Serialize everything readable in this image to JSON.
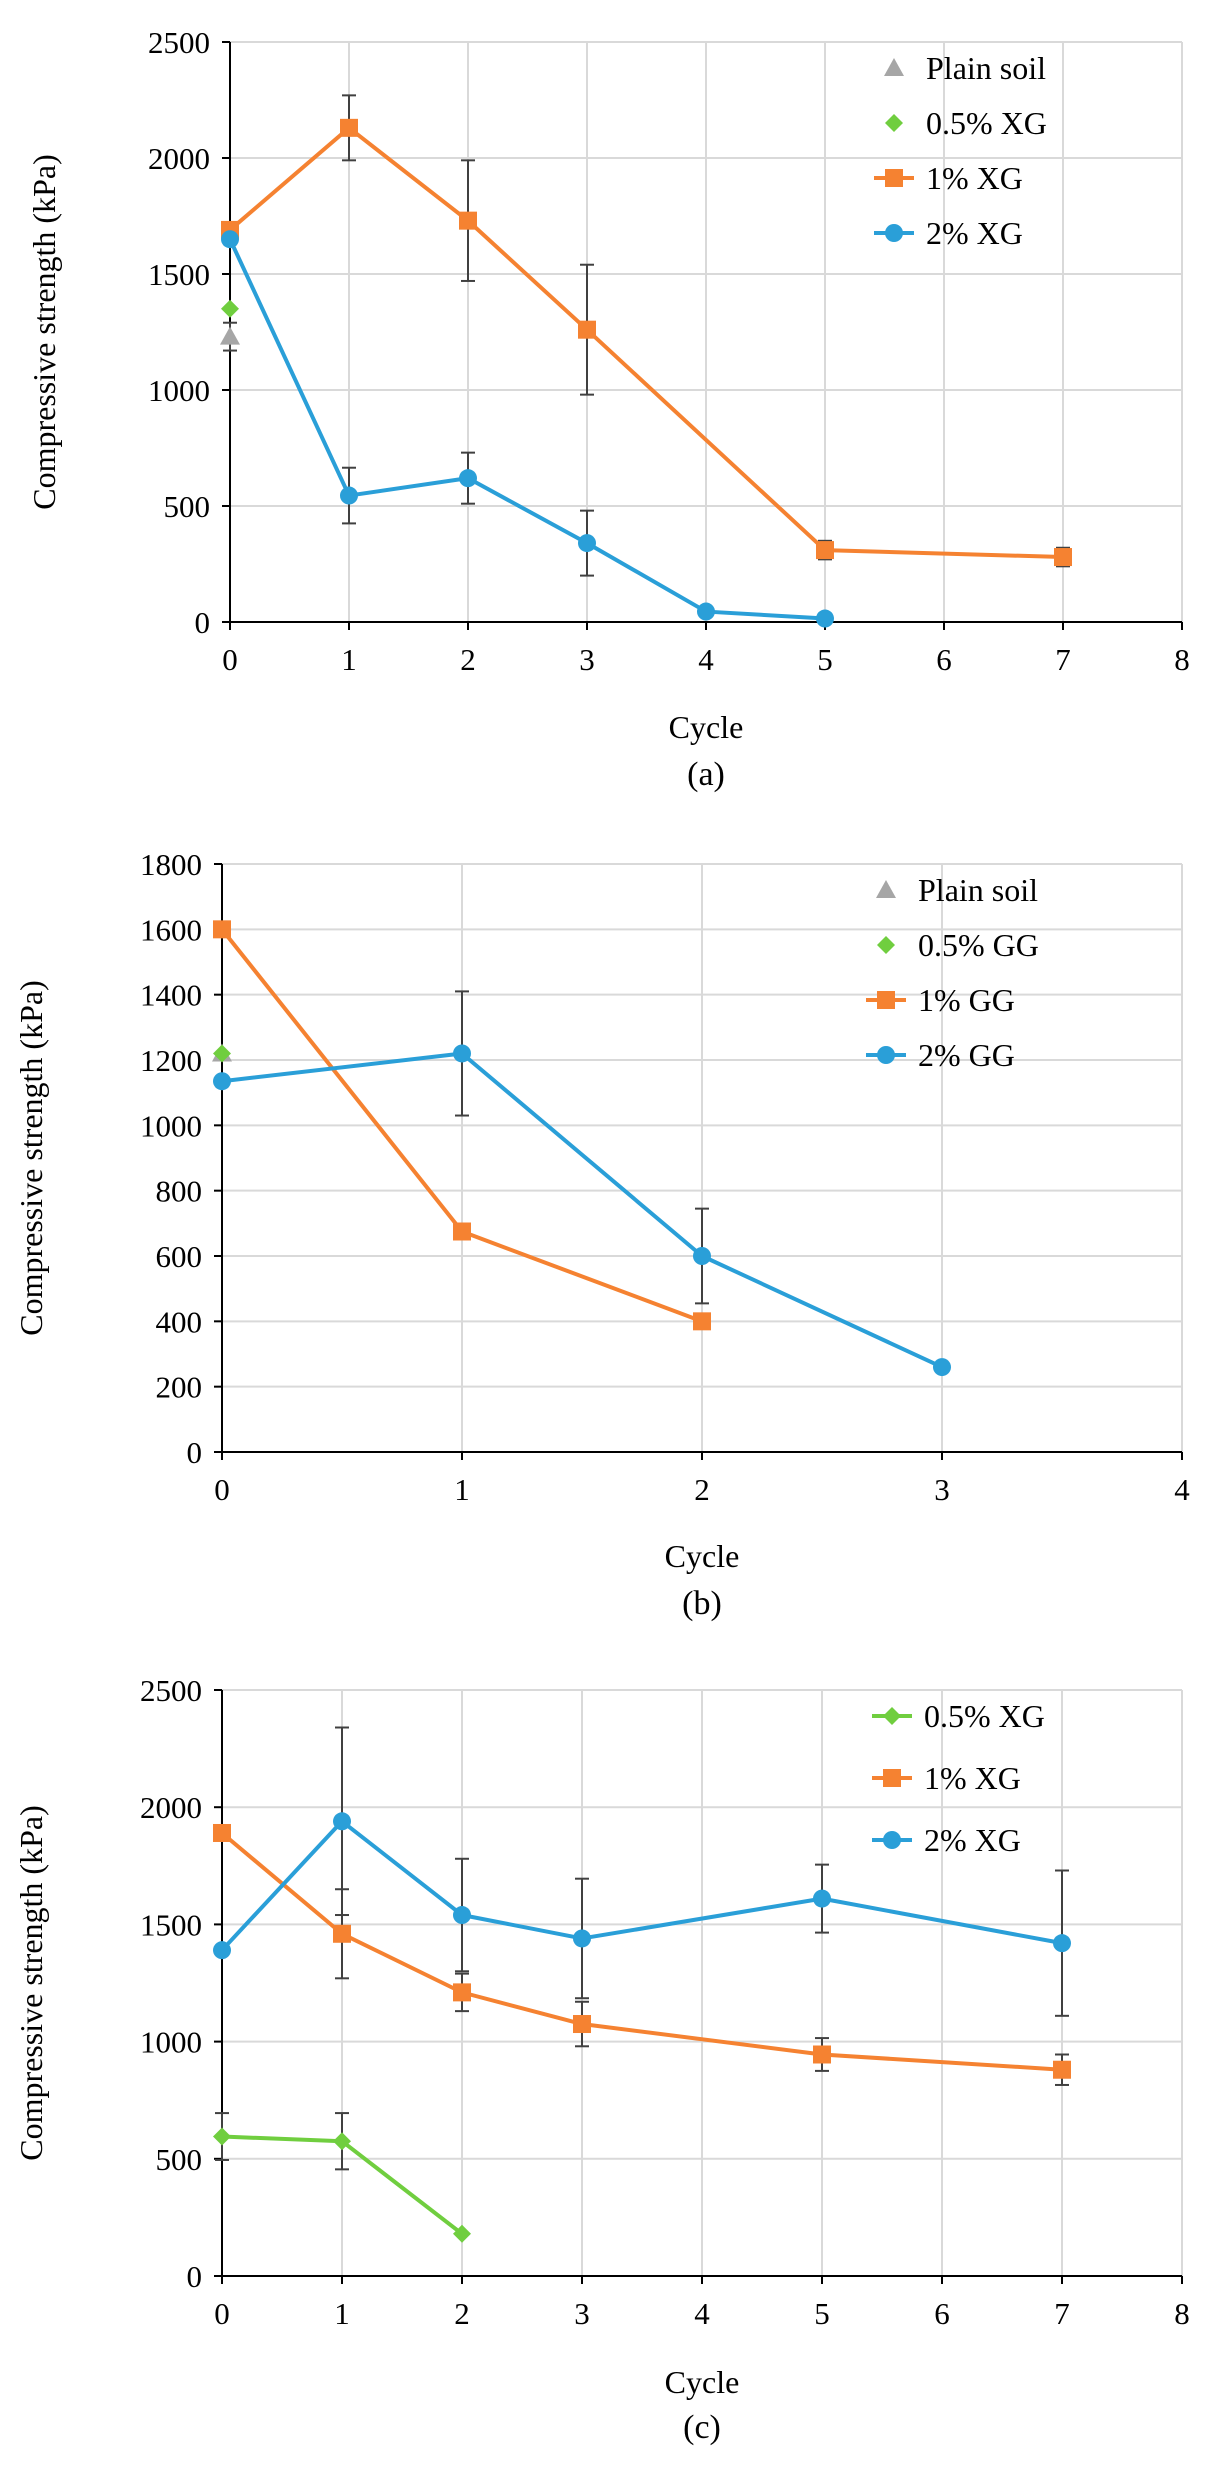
{
  "colors": {
    "plain": "#a6a6a6",
    "xg05": "#70ce3f",
    "xg1": "#f58231",
    "xg2": "#2a9fd8",
    "grid": "#d9d9d9",
    "axis": "#000000"
  },
  "chart_data": [
    {
      "id": "a",
      "type": "line",
      "caption": "(a)",
      "xlabel": "Cycle",
      "ylabel": "Compressive strength (kPa)",
      "xlim": [
        0,
        8
      ],
      "ylim": [
        0,
        2500
      ],
      "xticks": [
        0,
        1,
        2,
        3,
        4,
        5,
        6,
        7,
        8
      ],
      "yticks": [
        0,
        500,
        1000,
        1500,
        2000,
        2500
      ],
      "grid": true,
      "legend_position": "top-right",
      "series": [
        {
          "name": "Plain soil",
          "color": "#a6a6a6",
          "marker": "triangle",
          "line": false,
          "points": [
            {
              "x": 0,
              "y": 1230,
              "err": 60
            }
          ]
        },
        {
          "name": "0.5% XG",
          "color": "#70ce3f",
          "marker": "diamond",
          "line": false,
          "points": [
            {
              "x": 0,
              "y": 1350,
              "err": 0
            }
          ]
        },
        {
          "name": "1% XG",
          "color": "#f58231",
          "marker": "square",
          "line": true,
          "points": [
            {
              "x": 0,
              "y": 1690,
              "err": 0
            },
            {
              "x": 1,
              "y": 2130,
              "err": 140
            },
            {
              "x": 2,
              "y": 1730,
              "err": 260
            },
            {
              "x": 3,
              "y": 1260,
              "err": 280
            },
            {
              "x": 5,
              "y": 310,
              "err": 40
            },
            {
              "x": 7,
              "y": 280,
              "err": 40
            }
          ]
        },
        {
          "name": "2% XG",
          "color": "#2a9fd8",
          "marker": "circle",
          "line": true,
          "points": [
            {
              "x": 0,
              "y": 1650,
              "err": 0
            },
            {
              "x": 1,
              "y": 545,
              "err": 120
            },
            {
              "x": 2,
              "y": 620,
              "err": 110
            },
            {
              "x": 3,
              "y": 340,
              "err": 140
            },
            {
              "x": 4,
              "y": 45,
              "err": 0
            },
            {
              "x": 5,
              "y": 15,
              "err": 0
            }
          ]
        }
      ]
    },
    {
      "id": "b",
      "type": "line",
      "caption": "(b)",
      "xlabel": "Cycle",
      "ylabel": "Compressive strength (kPa)",
      "xlim": [
        0,
        4
      ],
      "ylim": [
        0,
        1800
      ],
      "xticks": [
        0,
        1,
        2,
        3,
        4
      ],
      "yticks": [
        0,
        200,
        400,
        600,
        800,
        1000,
        1200,
        1400,
        1600,
        1800
      ],
      "grid": true,
      "legend_position": "top-right",
      "series": [
        {
          "name": "Plain soil",
          "color": "#a6a6a6",
          "marker": "triangle",
          "line": false,
          "points": [
            {
              "x": 0,
              "y": 1220,
              "err": 0
            }
          ]
        },
        {
          "name": "0.5% GG",
          "color": "#70ce3f",
          "marker": "diamond",
          "line": false,
          "points": [
            {
              "x": 0,
              "y": 1220,
              "err": 0
            }
          ]
        },
        {
          "name": "1% GG",
          "color": "#f58231",
          "marker": "square",
          "line": true,
          "points": [
            {
              "x": 0,
              "y": 1600,
              "err": 0
            },
            {
              "x": 1,
              "y": 675,
              "err": 0
            },
            {
              "x": 2,
              "y": 400,
              "err": 0
            }
          ]
        },
        {
          "name": "2% GG",
          "color": "#2a9fd8",
          "marker": "circle",
          "line": true,
          "points": [
            {
              "x": 0,
              "y": 1135,
              "err": 0
            },
            {
              "x": 1,
              "y": 1220,
              "err": 190
            },
            {
              "x": 2,
              "y": 600,
              "err": 145
            },
            {
              "x": 3,
              "y": 260,
              "err": 0
            }
          ]
        }
      ]
    },
    {
      "id": "c",
      "type": "line",
      "caption": "(c)",
      "xlabel": "Cycle",
      "ylabel": "Compressive strength (kPa)",
      "xlim": [
        0,
        8
      ],
      "ylim": [
        0,
        2500
      ],
      "xticks": [
        0,
        1,
        2,
        3,
        4,
        5,
        6,
        7,
        8
      ],
      "yticks": [
        0,
        500,
        1000,
        1500,
        2000,
        2500
      ],
      "grid": true,
      "legend_position": "top-right",
      "series": [
        {
          "name": "0.5% XG",
          "color": "#70ce3f",
          "marker": "diamond",
          "line": true,
          "points": [
            {
              "x": 0,
              "y": 595,
              "err": 100
            },
            {
              "x": 1,
              "y": 575,
              "err": 120
            },
            {
              "x": 2,
              "y": 180,
              "err": 0
            }
          ]
        },
        {
          "name": "1% XG",
          "color": "#f58231",
          "marker": "square",
          "line": true,
          "points": [
            {
              "x": 0,
              "y": 1890,
              "err": 0
            },
            {
              "x": 1,
              "y": 1460,
              "err": 190
            },
            {
              "x": 2,
              "y": 1210,
              "err": 80
            },
            {
              "x": 3,
              "y": 1075,
              "err": 95
            },
            {
              "x": 5,
              "y": 945,
              "err": 70
            },
            {
              "x": 7,
              "y": 880,
              "err": 65
            }
          ]
        },
        {
          "name": "2% XG",
          "color": "#2a9fd8",
          "marker": "circle",
          "line": true,
          "points": [
            {
              "x": 0,
              "y": 1390,
              "err": 0
            },
            {
              "x": 1,
              "y": 1940,
              "err": 400
            },
            {
              "x": 2,
              "y": 1540,
              "err": 240
            },
            {
              "x": 3,
              "y": 1440,
              "err": 255
            },
            {
              "x": 5,
              "y": 1610,
              "err": 145
            },
            {
              "x": 7,
              "y": 1420,
              "err": 310
            }
          ]
        }
      ]
    }
  ]
}
